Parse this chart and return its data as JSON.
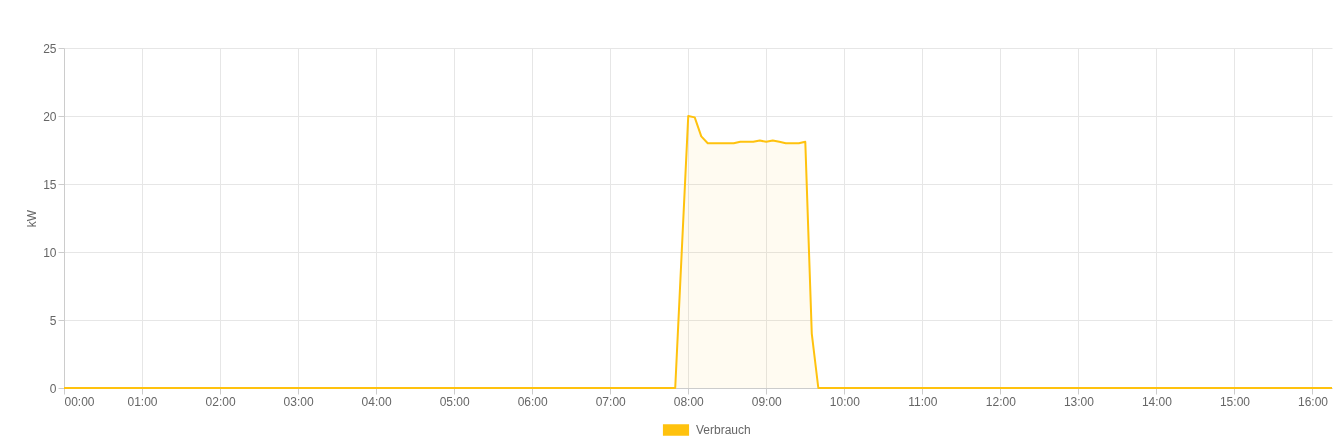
{
  "chart_data": {
    "type": "area",
    "ylabel": "kW",
    "x": [
      0,
      7.833,
      8.0,
      8.083,
      8.167,
      8.25,
      8.333,
      8.417,
      8.5,
      8.583,
      8.667,
      8.75,
      8.833,
      8.917,
      9.0,
      9.083,
      9.167,
      9.25,
      9.333,
      9.417,
      9.5,
      9.583,
      9.667,
      16.25
    ],
    "series": [
      {
        "name": "Verbrauch",
        "color": "#ffc20e",
        "values": [
          0,
          0,
          20.0,
          19.9,
          18.5,
          18.0,
          18.0,
          18.0,
          18.0,
          18.0,
          18.1,
          18.1,
          18.1,
          18.2,
          18.1,
          18.2,
          18.1,
          18.0,
          18.0,
          18.0,
          18.1,
          4.0,
          0,
          0
        ]
      }
    ],
    "xlim": [
      0,
      16.25
    ],
    "xticks": [
      {
        "value": 0,
        "label": "00:00"
      },
      {
        "value": 1,
        "label": "01:00"
      },
      {
        "value": 2,
        "label": "02:00"
      },
      {
        "value": 3,
        "label": "03:00"
      },
      {
        "value": 4,
        "label": "04:00"
      },
      {
        "value": 5,
        "label": "05:00"
      },
      {
        "value": 6,
        "label": "06:00"
      },
      {
        "value": 7,
        "label": "07:00"
      },
      {
        "value": 8,
        "label": "08:00"
      },
      {
        "value": 9,
        "label": "09:00"
      },
      {
        "value": 10,
        "label": "10:00"
      },
      {
        "value": 11,
        "label": "11:00"
      },
      {
        "value": 12,
        "label": "12:00"
      },
      {
        "value": 13,
        "label": "13:00"
      },
      {
        "value": 14,
        "label": "14:00"
      },
      {
        "value": 15,
        "label": "15:00"
      },
      {
        "value": 16,
        "label": "16:00"
      }
    ],
    "ylim": [
      0,
      25
    ],
    "yticks": [
      0,
      5,
      10,
      15,
      20,
      25
    ],
    "grid": true,
    "legend": "bottom",
    "marker": "none",
    "line_style": "solid"
  }
}
